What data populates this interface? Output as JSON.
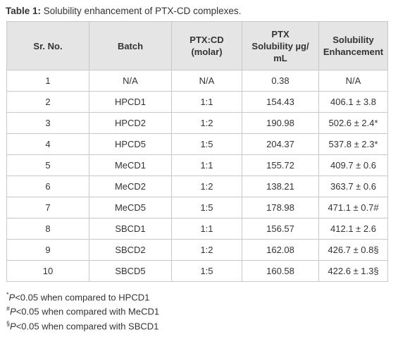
{
  "caption": {
    "label": "Table 1:",
    "text": "Solubility enhancement of PTX-CD complexes."
  },
  "table": {
    "headers": [
      "Sr. No.",
      "Batch",
      "PTX:CD\n(molar)",
      "PTX\nSolubility µg/\nmL",
      "Solubility\nEnhancement"
    ],
    "rows": [
      [
        "1",
        "N/A",
        "N/A",
        "0.38",
        "N/A"
      ],
      [
        "2",
        "HPCD1",
        "1:1",
        "154.43",
        "406.1 ± 3.8"
      ],
      [
        "3",
        "HPCD2",
        "1:2",
        "190.98",
        "502.6 ± 2.4*"
      ],
      [
        "4",
        "HPCD5",
        "1:5",
        "204.37",
        "537.8 ± 2.3*"
      ],
      [
        "5",
        "MeCD1",
        "1:1",
        "155.72",
        "409.7 ± 0.6"
      ],
      [
        "6",
        "MeCD2",
        "1:2",
        "138.21",
        "363.7 ± 0.6"
      ],
      [
        "7",
        "MeCD5",
        "1:5",
        "178.98",
        "471.1 ± 0.7#"
      ],
      [
        "8",
        "SBCD1",
        "1:1",
        "156.57",
        "412.1 ± 2.6"
      ],
      [
        "9",
        "SBCD2",
        "1:2",
        "162.08",
        "426.7 ± 0.8§"
      ],
      [
        "10",
        "SBCD5",
        "1:5",
        "160.58",
        "422.6 ± 1.3§"
      ]
    ]
  },
  "footnotes": [
    {
      "mark": "*",
      "italic": "P",
      "text": "<0.05 when compared to HPCD1"
    },
    {
      "mark": "#",
      "italic": "P",
      "text": "<0.05 when compared with MeCD1"
    },
    {
      "mark": "§",
      "italic": "P",
      "text": "<0.05 when compared with SBCD1"
    }
  ]
}
